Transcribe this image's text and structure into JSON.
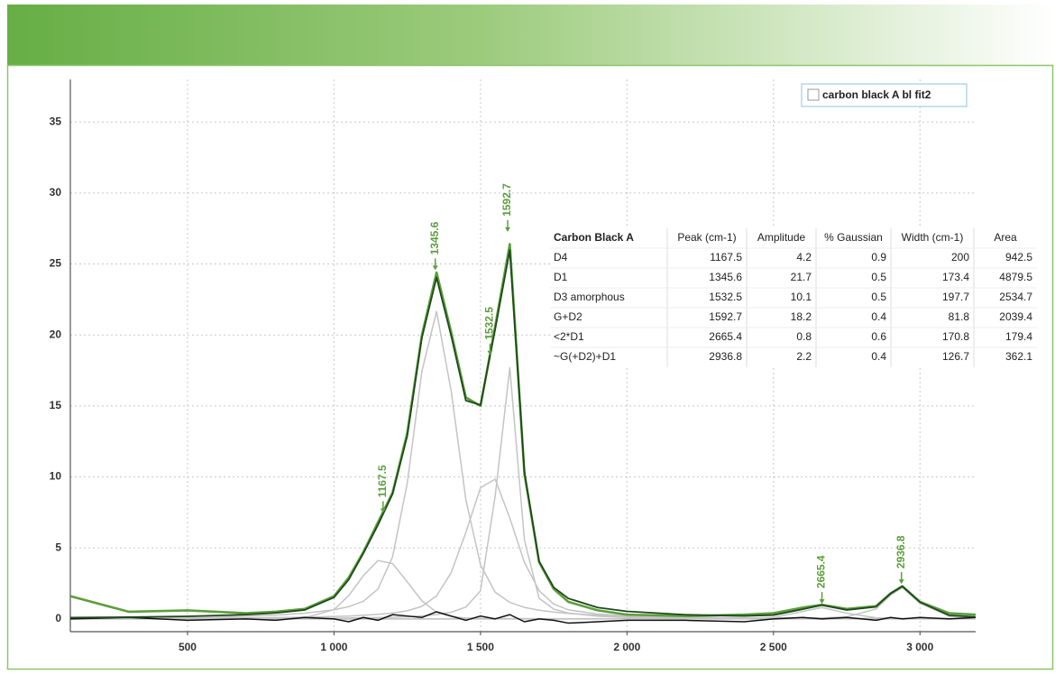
{
  "chart_data": {
    "type": "line",
    "x": [
      100,
      300,
      500,
      700,
      800,
      900,
      1000,
      1050,
      1100,
      1150,
      1200,
      1250,
      1300,
      1350,
      1400,
      1450,
      1500,
      1550,
      1600,
      1650,
      1700,
      1750,
      1800,
      1900,
      2000,
      2200,
      2400,
      2500,
      2600,
      2665,
      2750,
      2850,
      2900,
      2940,
      3000,
      3100,
      3190
    ],
    "series": [
      {
        "color": "#c4c4c4",
        "values": [
          0.0,
          0.01,
          0.01,
          0.02,
          0.03,
          0.08,
          0.65,
          1.63,
          3.04,
          4.11,
          3.89,
          2.61,
          1.27,
          0.47,
          0.16,
          0.06,
          0.04,
          0.03,
          0.02,
          0.02,
          0.01,
          0.01,
          0.01,
          0.01,
          0.01,
          0,
          0,
          0,
          0,
          0,
          0,
          0,
          0,
          0,
          0,
          0,
          0
        ]
      },
      {
        "color": "#c4c4c4",
        "values": [
          0.05,
          0.07,
          0.11,
          0.19,
          0.27,
          0.4,
          0.64,
          0.86,
          1.24,
          2.1,
          4.38,
          9.56,
          17.45,
          21.66,
          16.04,
          8.4,
          3.81,
          1.88,
          1.16,
          0.81,
          0.61,
          0.48,
          0.38,
          0.26,
          0.19,
          0.11,
          0.07,
          0.06,
          0.05,
          0.05,
          0.04,
          0.04,
          0.03,
          0.03,
          0.03,
          0.03,
          0.02
        ]
      },
      {
        "color": "#c4c4c4",
        "values": [
          0.02,
          0.03,
          0.05,
          0.07,
          0.09,
          0.12,
          0.17,
          0.2,
          0.25,
          0.32,
          0.41,
          0.57,
          0.88,
          1.62,
          3.26,
          6.09,
          9.24,
          9.84,
          7.1,
          3.98,
          1.99,
          1.04,
          0.64,
          0.34,
          0.22,
          0.11,
          0.07,
          0.05,
          0.04,
          0.04,
          0.03,
          0.03,
          0.03,
          0.03,
          0.02,
          0.02,
          0.02
        ]
      },
      {
        "color": "#c4c4c4",
        "values": [
          0.01,
          0.01,
          0.02,
          0.02,
          0.03,
          0.04,
          0.05,
          0.06,
          0.08,
          0.09,
          0.12,
          0.15,
          0.21,
          0.3,
          0.47,
          0.83,
          1.98,
          8.64,
          17.7,
          5.54,
          1.45,
          0.69,
          0.41,
          0.19,
          0.11,
          0.05,
          0.03,
          0.02,
          0.02,
          0.02,
          0.01,
          0.01,
          0.01,
          0.01,
          0.01,
          0.01,
          0.01
        ]
      },
      {
        "color": "#c4c4c4",
        "values": [
          0,
          0,
          0,
          0,
          0,
          0,
          0,
          0,
          0,
          0,
          0,
          0,
          0,
          0,
          0,
          0,
          0,
          0,
          0,
          0,
          0,
          0,
          0,
          0,
          0.01,
          0.01,
          0.03,
          0.1,
          0.52,
          0.8,
          0.4,
          0.08,
          0.04,
          0.03,
          0.02,
          0.01,
          0.01
        ]
      },
      {
        "color": "#c4c4c4",
        "values": [
          0,
          0,
          0,
          0,
          0,
          0,
          0,
          0,
          0,
          0,
          0,
          0,
          0,
          0,
          0,
          0,
          0,
          0,
          0,
          0,
          0,
          0,
          0,
          0,
          0.01,
          0.01,
          0.02,
          0.03,
          0.05,
          0.07,
          0.14,
          0.7,
          1.68,
          2.2,
          1.1,
          0.18,
          0.08
        ]
      },
      {
        "color": "#111111",
        "values": [
          0.0,
          0.1,
          -0.1,
          0.0,
          -0.1,
          0.1,
          0.0,
          -0.2,
          0.1,
          -0.1,
          0.3,
          0.2,
          0.1,
          0.5,
          0.2,
          -0.1,
          0.2,
          0.0,
          0.3,
          -0.2,
          0.0,
          -0.1,
          -0.3,
          -0.2,
          -0.1,
          -0.1,
          -0.2,
          0.0,
          0.1,
          0.0,
          0.1,
          -0.1,
          0.1,
          0.0,
          0.1,
          0.0,
          0.1
        ]
      },
      {
        "name": "carbon black A bl fit2",
        "color": "#5c9e3c",
        "values": [
          1.6,
          0.5,
          0.6,
          0.4,
          0.5,
          0.7,
          1.6,
          2.9,
          4.7,
          6.8,
          8.9,
          13.1,
          20.0,
          24.4,
          20.2,
          15.6,
          15.0,
          20.6,
          26.4,
          10.2,
          4.0,
          2.1,
          1.2,
          0.6,
          0.3,
          0.2,
          0.3,
          0.4,
          0.8,
          1.0,
          0.7,
          0.9,
          1.8,
          2.3,
          1.2,
          0.4,
          0.3
        ]
      },
      {
        "color": "#1e4a1a",
        "values": [
          0.09,
          0.12,
          0.18,
          0.3,
          0.42,
          0.63,
          1.51,
          2.76,
          4.61,
          6.62,
          8.8,
          12.89,
          19.81,
          24.05,
          19.93,
          15.38,
          15.07,
          20.39,
          25.98,
          10.35,
          4.06,
          2.22,
          1.44,
          0.8,
          0.53,
          0.29,
          0.21,
          0.27,
          0.68,
          0.97,
          0.63,
          0.85,
          1.79,
          2.3,
          1.18,
          0.25,
          0.14
        ]
      }
    ],
    "xlim": [
      100,
      3190
    ],
    "ylim": [
      -0.9,
      38
    ],
    "xticks": [
      500,
      {
        "value": 1000,
        "label": "1 000"
      },
      {
        "value": 1500,
        "label": "1 500"
      },
      {
        "value": 2000,
        "label": "2 000"
      },
      {
        "value": 2500,
        "label": "2 500"
      },
      {
        "value": 3000,
        "label": "3 000"
      }
    ],
    "yticks": [
      0,
      5,
      10,
      15,
      20,
      25,
      30,
      35
    ],
    "grid": true,
    "legend": "top-right",
    "annotations": [
      {
        "x": 1167.5,
        "y": 7.4
      },
      {
        "x": 1345.6,
        "y": 24.5
      },
      {
        "x": 1532.5,
        "y": 18.5
      },
      {
        "x": 1592.7,
        "y": 27.2
      },
      {
        "x": 2665.4,
        "y": 1.0
      },
      {
        "x": 2936.8,
        "y": 2.4
      }
    ],
    "table": {
      "columns": [
        "Carbon Black A",
        "Peak (cm-1)",
        "Amplitude",
        "% Gaussian",
        "Width (cm-1)",
        "Area"
      ],
      "rows": [
        [
          "D4",
          1167.5,
          4.2,
          0.9,
          200,
          942.5
        ],
        [
          "D1",
          1345.6,
          21.7,
          0.5,
          173.4,
          4879.5
        ],
        [
          "D3 amorphous",
          1532.5,
          10.1,
          0.5,
          197.7,
          2534.7
        ],
        [
          "G+D2",
          1592.7,
          18.2,
          0.4,
          81.8,
          2039.4
        ],
        [
          "<2*D1",
          2665.4,
          0.8,
          0.6,
          170.8,
          179.4
        ],
        [
          "~G(+D2)+D1",
          2936.8,
          2.2,
          0.4,
          126.7,
          362.1
        ]
      ]
    }
  }
}
